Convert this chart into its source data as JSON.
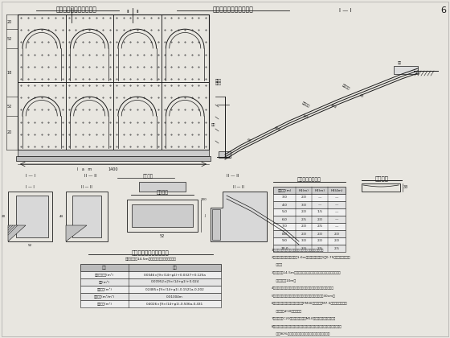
{
  "title_left": "拱形骨架护坡设计通用图",
  "title_right": "拱形骨架护坡防护设计图",
  "page_num": "6",
  "bg_color": "#e8e6e0",
  "line_color": "#1a1a1a",
  "dot_color": "#444444",
  "table_title": "拱背矢高度控制表",
  "table_headers": [
    "防护高度(m)",
    "H1(m)",
    "H2(m)",
    "H3(4m)"
  ],
  "table_rows": [
    [
      "3.0",
      "2.0",
      "—",
      "—"
    ],
    [
      "4.0",
      "3.0",
      "—",
      "—"
    ],
    [
      "5.0",
      "2.0",
      "1.5",
      "—"
    ],
    [
      "6.0",
      "2.5",
      "2.0",
      "—"
    ],
    [
      "7.0",
      "2.0",
      "2.5",
      "—"
    ],
    [
      "8.0",
      "2.0",
      "2.0",
      "2.0"
    ],
    [
      "9.0",
      "3.0",
      "2.0",
      "2.0"
    ],
    [
      "10.0",
      "3.0",
      "2.5",
      "2.5"
    ]
  ],
  "qty_title": "拱型骨架防护工程数量表",
  "qty_subtitle": "骨架骨架间距14.5m一段，单骨架断面工程数量。",
  "qty_rows": [
    [
      "拱肋混凝土量(m³)",
      "0.0046×[9×(14+φ1)+0.0327+0.125a"
    ],
    [
      "立柱(m³)",
      "0.00952×[9×(14+φ1)+0.024"
    ],
    [
      "碎石垫层(m³)",
      "0.2485×[9×(14+φ1)-0.1521a-0.202"
    ],
    [
      "碎石垫层(m³/m²)",
      "0.01004m"
    ],
    [
      "碎石垫层(m²)",
      "0.4026×[9×(14+φ1)-0.506a-0.431"
    ]
  ],
  "pad_stone": "置换垫石",
  "notes": [
    "1、本图为拱形骨架防护设计图，图中尺寸以厘米为单位。",
    "2、本图适用于坡面坡度大于1:0m，且坡率平均等于1：0.75的路堑、边坡的防",
    "    护护。",
    "3、护坡高度14.5m第一层拱肋，骨架间相邻两层底标准不大手骨架，骨",
    "    架高不小于10m。",
    "4、拱形骨架底全宽不少于一个段间距，护坡部分深埋入密实性坡面。",
    "5、拱形骨架的底遇土石交替情况，混凝土，管骨架骨架宽30cm。",
    "6、用于路堤工程护坡不低于不低于FM30，骨架采用M7.5水泥浆抹面。每道",
    "    必须采用#10水泥砂浆。",
    "7、碎石垫层C20混凝土整体，采用M10水泥砂浆嵌缝处理每格。",
    "8、其他事项均依，系统行多段放坡、细坡地段、通道水资源、运运、运运、运",
    "    大约90%，管管严禁措施的运运运运运运运运运运运运。",
    "9、拱形产量骨架防护工程的拱形设计护坡过时运运运运运运运运运运运运。"
  ]
}
